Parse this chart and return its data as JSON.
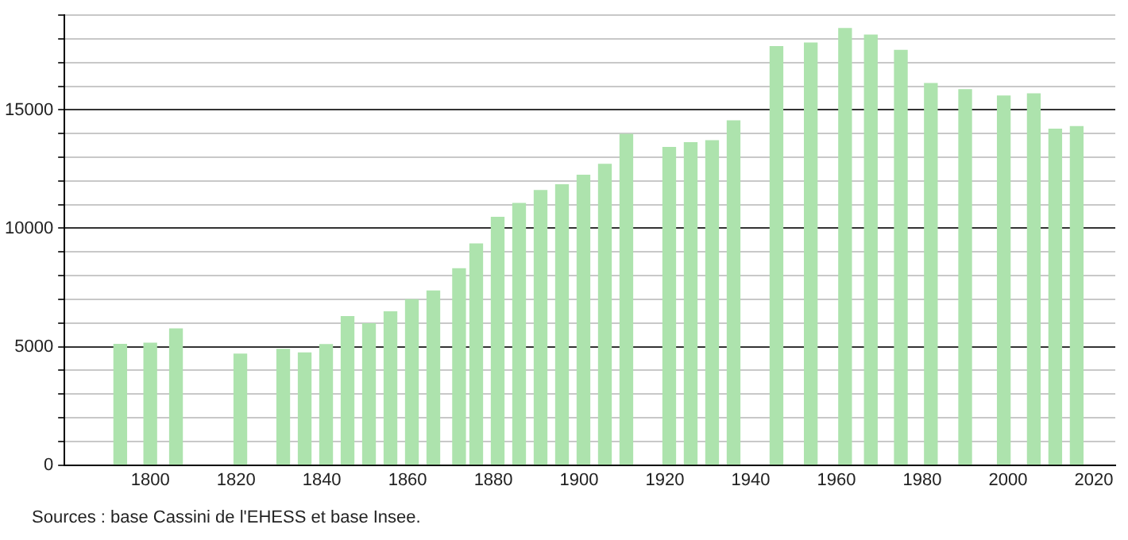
{
  "chart_data": {
    "type": "bar",
    "x": [
      1793,
      1800,
      1806,
      1821,
      1831,
      1836,
      1841,
      1846,
      1851,
      1856,
      1861,
      1866,
      1872,
      1876,
      1881,
      1886,
      1891,
      1896,
      1901,
      1906,
      1911,
      1921,
      1926,
      1931,
      1936,
      1946,
      1954,
      1962,
      1968,
      1975,
      1982,
      1990,
      1999,
      2006,
      2011,
      2016
    ],
    "values": [
      5100,
      5150,
      5750,
      4690,
      4890,
      4740,
      5090,
      6270,
      5970,
      6470,
      6980,
      7350,
      8290,
      9340,
      10460,
      11050,
      11600,
      11840,
      12240,
      12700,
      13970,
      13420,
      13620,
      13700,
      14540,
      17680,
      17830,
      18440,
      18160,
      17520,
      16120,
      15860,
      15590,
      15680,
      14190,
      14300
    ],
    "color": "#ade3ad",
    "xlim": [
      1780,
      2025
    ],
    "xticks": [
      1800,
      1820,
      1840,
      1860,
      1880,
      1900,
      1920,
      1940,
      1960,
      1980,
      2000,
      2020
    ],
    "ylim": [
      0,
      19000
    ],
    "yticks": [
      0,
      {
        "value": 1000,
        "label": null
      },
      {
        "value": 2000,
        "label": null
      },
      {
        "value": 3000,
        "label": null
      },
      {
        "value": 4000,
        "label": null
      },
      5000,
      {
        "value": 6000,
        "label": null
      },
      {
        "value": 7000,
        "label": null
      },
      {
        "value": 8000,
        "label": null
      },
      {
        "value": 9000,
        "label": null
      },
      10000,
      {
        "value": 11000,
        "label": null
      },
      {
        "value": 12000,
        "label": null
      },
      {
        "value": 13000,
        "label": null
      },
      {
        "value": 14000,
        "label": null
      },
      15000,
      {
        "value": 16000,
        "label": null
      },
      {
        "value": 17000,
        "label": null
      },
      {
        "value": 18000,
        "label": null
      },
      {
        "value": 19000,
        "label": null
      }
    ],
    "grid": "y",
    "annotations": [
      "Sources : base Cassini de l'EHESS et base Insee."
    ]
  }
}
